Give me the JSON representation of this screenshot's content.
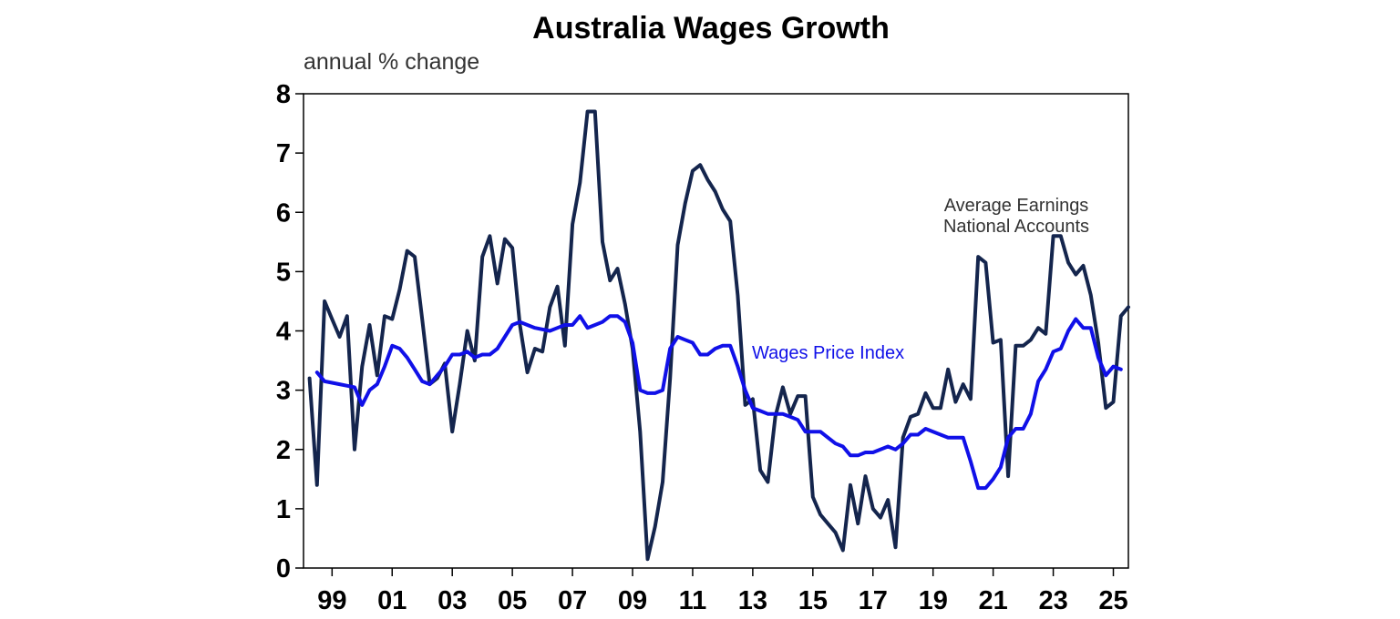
{
  "chart_data": {
    "type": "line",
    "title": "Australia Wages Growth",
    "ylabel": "annual % change",
    "xlabel": "",
    "ylim": [
      0,
      8
    ],
    "xlim": [
      1998.3,
      2025.75
    ],
    "yticks": [
      0,
      1,
      2,
      3,
      4,
      5,
      6,
      7,
      8
    ],
    "xticks": [
      {
        "label": "99",
        "value": 1999.25
      },
      {
        "label": "01",
        "value": 2001.25
      },
      {
        "label": "03",
        "value": 2003.25
      },
      {
        "label": "05",
        "value": 2005.25
      },
      {
        "label": "07",
        "value": 2007.25
      },
      {
        "label": "09",
        "value": 2009.25
      },
      {
        "label": "11",
        "value": 2011.25
      },
      {
        "label": "13",
        "value": 2013.25
      },
      {
        "label": "15",
        "value": 2015.25
      },
      {
        "label": "17",
        "value": 2017.25
      },
      {
        "label": "19",
        "value": 2019.25
      },
      {
        "label": "21",
        "value": 2021.25
      },
      {
        "label": "23",
        "value": 2023.25
      },
      {
        "label": "25",
        "value": 2025.25
      }
    ],
    "grid": false,
    "legend": "none",
    "series": [
      {
        "name": "Average Earnings National Accounts",
        "label_lines": [
          "Average Earnings",
          "National Accounts"
        ],
        "color": "#14254d",
        "points": [
          [
            1998.5,
            3.2
          ],
          [
            1998.75,
            1.4
          ],
          [
            1999.0,
            4.5
          ],
          [
            1999.25,
            4.2
          ],
          [
            1999.5,
            3.9
          ],
          [
            1999.75,
            4.25
          ],
          [
            2000.0,
            2.0
          ],
          [
            2000.25,
            3.4
          ],
          [
            2000.5,
            4.1
          ],
          [
            2000.75,
            3.25
          ],
          [
            2001.0,
            4.25
          ],
          [
            2001.25,
            4.2
          ],
          [
            2001.5,
            4.7
          ],
          [
            2001.75,
            5.35
          ],
          [
            2002.0,
            5.25
          ],
          [
            2002.25,
            4.2
          ],
          [
            2002.5,
            3.1
          ],
          [
            2002.75,
            3.2
          ],
          [
            2003.0,
            3.45
          ],
          [
            2003.25,
            2.3
          ],
          [
            2003.5,
            3.1
          ],
          [
            2003.75,
            4.0
          ],
          [
            2004.0,
            3.5
          ],
          [
            2004.25,
            5.25
          ],
          [
            2004.5,
            5.6
          ],
          [
            2004.75,
            4.8
          ],
          [
            2005.0,
            5.55
          ],
          [
            2005.25,
            5.4
          ],
          [
            2005.5,
            4.1
          ],
          [
            2005.75,
            3.3
          ],
          [
            2006.0,
            3.7
          ],
          [
            2006.25,
            3.65
          ],
          [
            2006.5,
            4.4
          ],
          [
            2006.75,
            4.75
          ],
          [
            2007.0,
            3.75
          ],
          [
            2007.25,
            5.8
          ],
          [
            2007.5,
            6.5
          ],
          [
            2007.75,
            7.7
          ],
          [
            2008.0,
            7.7
          ],
          [
            2008.25,
            5.5
          ],
          [
            2008.5,
            4.85
          ],
          [
            2008.75,
            5.05
          ],
          [
            2009.0,
            4.45
          ],
          [
            2009.25,
            3.7
          ],
          [
            2009.5,
            2.3
          ],
          [
            2009.75,
            0.15
          ],
          [
            2010.0,
            0.7
          ],
          [
            2010.25,
            1.45
          ],
          [
            2010.5,
            3.2
          ],
          [
            2010.75,
            5.45
          ],
          [
            2011.0,
            6.15
          ],
          [
            2011.25,
            6.7
          ],
          [
            2011.5,
            6.8
          ],
          [
            2011.75,
            6.55
          ],
          [
            2012.0,
            6.35
          ],
          [
            2012.25,
            6.05
          ],
          [
            2012.5,
            5.85
          ],
          [
            2012.75,
            4.6
          ],
          [
            2013.0,
            2.75
          ],
          [
            2013.25,
            2.85
          ],
          [
            2013.5,
            1.65
          ],
          [
            2013.75,
            1.45
          ],
          [
            2014.0,
            2.55
          ],
          [
            2014.25,
            3.05
          ],
          [
            2014.5,
            2.6
          ],
          [
            2014.75,
            2.9
          ],
          [
            2015.0,
            2.9
          ],
          [
            2015.25,
            1.2
          ],
          [
            2015.5,
            0.9
          ],
          [
            2015.75,
            0.75
          ],
          [
            2016.0,
            0.6
          ],
          [
            2016.25,
            0.3
          ],
          [
            2016.5,
            1.4
          ],
          [
            2016.75,
            0.75
          ],
          [
            2017.0,
            1.55
          ],
          [
            2017.25,
            1.0
          ],
          [
            2017.5,
            0.85
          ],
          [
            2017.75,
            1.15
          ],
          [
            2018.0,
            0.35
          ],
          [
            2018.25,
            2.2
          ],
          [
            2018.5,
            2.55
          ],
          [
            2018.75,
            2.6
          ],
          [
            2019.0,
            2.95
          ],
          [
            2019.25,
            2.7
          ],
          [
            2019.5,
            2.7
          ],
          [
            2019.75,
            3.35
          ],
          [
            2020.0,
            2.8
          ],
          [
            2020.25,
            3.1
          ],
          [
            2020.5,
            2.85
          ],
          [
            2020.75,
            5.25
          ],
          [
            2021.0,
            5.15
          ],
          [
            2021.25,
            3.8
          ],
          [
            2021.5,
            3.85
          ],
          [
            2021.75,
            1.55
          ],
          [
            2022.0,
            3.75
          ],
          [
            2022.25,
            3.75
          ],
          [
            2022.5,
            3.85
          ],
          [
            2022.75,
            4.05
          ],
          [
            2023.0,
            3.95
          ],
          [
            2023.25,
            5.6
          ],
          [
            2023.5,
            5.6
          ],
          [
            2023.75,
            5.15
          ],
          [
            2024.0,
            4.95
          ],
          [
            2024.25,
            5.1
          ],
          [
            2024.5,
            4.6
          ],
          [
            2024.75,
            3.8
          ],
          [
            2025.0,
            2.7
          ],
          [
            2025.25,
            2.8
          ],
          [
            2025.5,
            4.25
          ],
          [
            2025.75,
            4.4
          ]
        ]
      },
      {
        "name": "Wages Price Index",
        "label_lines": [
          "Wages Price Index"
        ],
        "color": "#1010e8",
        "points": [
          [
            1998.75,
            3.3
          ],
          [
            1999.0,
            3.15
          ],
          [
            1999.5,
            3.1
          ],
          [
            2000.0,
            3.05
          ],
          [
            2000.25,
            2.75
          ],
          [
            2000.5,
            3.0
          ],
          [
            2000.75,
            3.1
          ],
          [
            2001.0,
            3.4
          ],
          [
            2001.25,
            3.75
          ],
          [
            2001.5,
            3.7
          ],
          [
            2001.75,
            3.55
          ],
          [
            2002.0,
            3.35
          ],
          [
            2002.25,
            3.15
          ],
          [
            2002.5,
            3.1
          ],
          [
            2002.75,
            3.25
          ],
          [
            2003.0,
            3.4
          ],
          [
            2003.25,
            3.6
          ],
          [
            2003.5,
            3.6
          ],
          [
            2003.75,
            3.65
          ],
          [
            2004.0,
            3.55
          ],
          [
            2004.25,
            3.6
          ],
          [
            2004.5,
            3.6
          ],
          [
            2004.75,
            3.7
          ],
          [
            2005.0,
            3.9
          ],
          [
            2005.25,
            4.1
          ],
          [
            2005.5,
            4.15
          ],
          [
            2005.75,
            4.1
          ],
          [
            2006.0,
            4.05
          ],
          [
            2006.5,
            4.0
          ],
          [
            2006.75,
            4.05
          ],
          [
            2007.0,
            4.1
          ],
          [
            2007.25,
            4.1
          ],
          [
            2007.5,
            4.25
          ],
          [
            2007.75,
            4.05
          ],
          [
            2008.0,
            4.1
          ],
          [
            2008.25,
            4.15
          ],
          [
            2008.5,
            4.25
          ],
          [
            2008.75,
            4.25
          ],
          [
            2009.0,
            4.15
          ],
          [
            2009.25,
            3.8
          ],
          [
            2009.5,
            3.0
          ],
          [
            2009.75,
            2.95
          ],
          [
            2010.0,
            2.95
          ],
          [
            2010.25,
            3.0
          ],
          [
            2010.5,
            3.7
          ],
          [
            2010.75,
            3.9
          ],
          [
            2011.0,
            3.85
          ],
          [
            2011.25,
            3.8
          ],
          [
            2011.5,
            3.6
          ],
          [
            2011.75,
            3.6
          ],
          [
            2012.0,
            3.7
          ],
          [
            2012.25,
            3.75
          ],
          [
            2012.5,
            3.75
          ],
          [
            2012.75,
            3.4
          ],
          [
            2013.0,
            3.0
          ],
          [
            2013.25,
            2.7
          ],
          [
            2013.5,
            2.65
          ],
          [
            2013.75,
            2.6
          ],
          [
            2014.0,
            2.6
          ],
          [
            2014.25,
            2.6
          ],
          [
            2014.5,
            2.55
          ],
          [
            2014.75,
            2.5
          ],
          [
            2015.0,
            2.3
          ],
          [
            2015.25,
            2.3
          ],
          [
            2015.5,
            2.3
          ],
          [
            2015.75,
            2.2
          ],
          [
            2016.0,
            2.1
          ],
          [
            2016.25,
            2.05
          ],
          [
            2016.5,
            1.9
          ],
          [
            2016.75,
            1.9
          ],
          [
            2017.0,
            1.95
          ],
          [
            2017.25,
            1.95
          ],
          [
            2017.5,
            2.0
          ],
          [
            2017.75,
            2.05
          ],
          [
            2018.0,
            2.0
          ],
          [
            2018.25,
            2.1
          ],
          [
            2018.5,
            2.25
          ],
          [
            2018.75,
            2.25
          ],
          [
            2019.0,
            2.35
          ],
          [
            2019.25,
            2.3
          ],
          [
            2019.5,
            2.25
          ],
          [
            2019.75,
            2.2
          ],
          [
            2020.0,
            2.2
          ],
          [
            2020.25,
            2.2
          ],
          [
            2020.5,
            1.8
          ],
          [
            2020.75,
            1.35
          ],
          [
            2021.0,
            1.35
          ],
          [
            2021.25,
            1.5
          ],
          [
            2021.5,
            1.7
          ],
          [
            2021.75,
            2.2
          ],
          [
            2022.0,
            2.35
          ],
          [
            2022.25,
            2.35
          ],
          [
            2022.5,
            2.6
          ],
          [
            2022.75,
            3.15
          ],
          [
            2023.0,
            3.35
          ],
          [
            2023.25,
            3.65
          ],
          [
            2023.5,
            3.7
          ],
          [
            2023.75,
            4.0
          ],
          [
            2024.0,
            4.2
          ],
          [
            2024.25,
            4.05
          ],
          [
            2024.5,
            4.05
          ],
          [
            2024.75,
            3.55
          ],
          [
            2025.0,
            3.25
          ],
          [
            2025.25,
            3.4
          ],
          [
            2025.5,
            3.35
          ]
        ]
      }
    ]
  }
}
